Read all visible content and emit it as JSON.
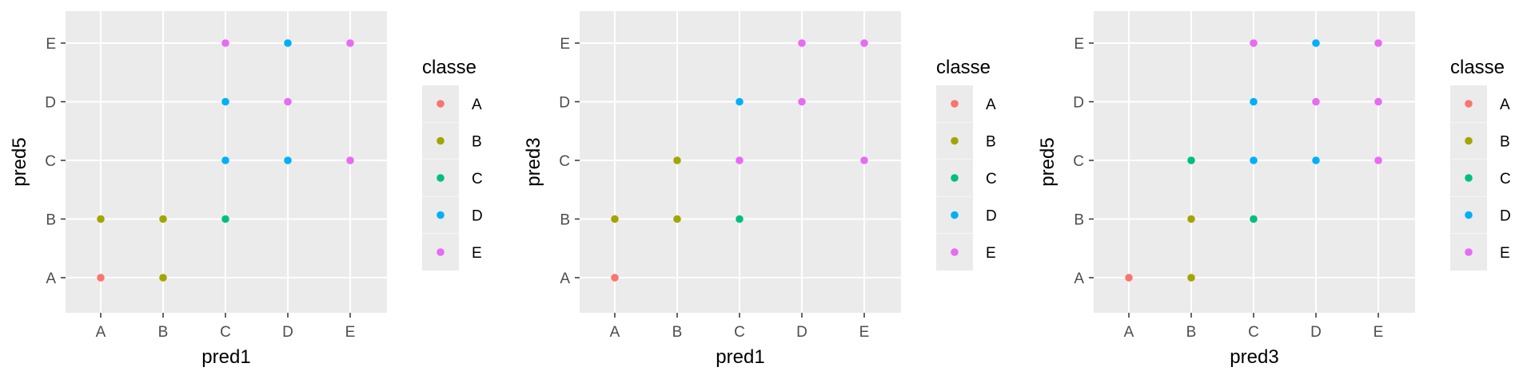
{
  "chart_data": [
    {
      "type": "scatter",
      "xlabel": "pred1",
      "ylabel": "pred5",
      "x_categories": [
        "A",
        "B",
        "C",
        "D",
        "E"
      ],
      "y_categories": [
        "A",
        "B",
        "C",
        "D",
        "E"
      ],
      "grid": true,
      "legend": {
        "title": "classe",
        "position": "right",
        "entries": [
          "A",
          "B",
          "C",
          "D",
          "E"
        ]
      },
      "points": [
        {
          "x": "A",
          "y": "A",
          "classe": "A"
        },
        {
          "x": "A",
          "y": "B",
          "classe": "B"
        },
        {
          "x": "B",
          "y": "A",
          "classe": "B"
        },
        {
          "x": "B",
          "y": "B",
          "classe": "B"
        },
        {
          "x": "C",
          "y": "B",
          "classe": "C"
        },
        {
          "x": "C",
          "y": "C",
          "classe": "D"
        },
        {
          "x": "C",
          "y": "D",
          "classe": "D"
        },
        {
          "x": "C",
          "y": "E",
          "classe": "E"
        },
        {
          "x": "D",
          "y": "C",
          "classe": "D"
        },
        {
          "x": "D",
          "y": "D",
          "classe": "E"
        },
        {
          "x": "D",
          "y": "E",
          "classe": "D"
        },
        {
          "x": "E",
          "y": "C",
          "classe": "E"
        },
        {
          "x": "E",
          "y": "E",
          "classe": "E"
        }
      ]
    },
    {
      "type": "scatter",
      "xlabel": "pred1",
      "ylabel": "pred3",
      "x_categories": [
        "A",
        "B",
        "C",
        "D",
        "E"
      ],
      "y_categories": [
        "A",
        "B",
        "C",
        "D",
        "E"
      ],
      "grid": true,
      "legend": {
        "title": "classe",
        "position": "right",
        "entries": [
          "A",
          "B",
          "C",
          "D",
          "E"
        ]
      },
      "points": [
        {
          "x": "A",
          "y": "A",
          "classe": "A"
        },
        {
          "x": "A",
          "y": "B",
          "classe": "B"
        },
        {
          "x": "B",
          "y": "B",
          "classe": "B"
        },
        {
          "x": "B",
          "y": "C",
          "classe": "B"
        },
        {
          "x": "C",
          "y": "B",
          "classe": "C"
        },
        {
          "x": "C",
          "y": "C",
          "classe": "E"
        },
        {
          "x": "C",
          "y": "D",
          "classe": "D"
        },
        {
          "x": "D",
          "y": "D",
          "classe": "E"
        },
        {
          "x": "D",
          "y": "E",
          "classe": "E"
        },
        {
          "x": "E",
          "y": "C",
          "classe": "E"
        },
        {
          "x": "E",
          "y": "E",
          "classe": "E"
        }
      ]
    },
    {
      "type": "scatter",
      "xlabel": "pred3",
      "ylabel": "pred5",
      "x_categories": [
        "A",
        "B",
        "C",
        "D",
        "E"
      ],
      "y_categories": [
        "A",
        "B",
        "C",
        "D",
        "E"
      ],
      "grid": true,
      "legend": {
        "title": "classe",
        "position": "right",
        "entries": [
          "A",
          "B",
          "C",
          "D",
          "E"
        ]
      },
      "points": [
        {
          "x": "A",
          "y": "A",
          "classe": "A"
        },
        {
          "x": "B",
          "y": "A",
          "classe": "B"
        },
        {
          "x": "B",
          "y": "B",
          "classe": "B"
        },
        {
          "x": "B",
          "y": "C",
          "classe": "C"
        },
        {
          "x": "C",
          "y": "B",
          "classe": "C"
        },
        {
          "x": "C",
          "y": "C",
          "classe": "D"
        },
        {
          "x": "C",
          "y": "D",
          "classe": "D"
        },
        {
          "x": "C",
          "y": "E",
          "classe": "E"
        },
        {
          "x": "D",
          "y": "C",
          "classe": "D"
        },
        {
          "x": "D",
          "y": "D",
          "classe": "E"
        },
        {
          "x": "D",
          "y": "E",
          "classe": "D"
        },
        {
          "x": "E",
          "y": "C",
          "classe": "E"
        },
        {
          "x": "E",
          "y": "D",
          "classe": "E"
        },
        {
          "x": "E",
          "y": "E",
          "classe": "E"
        }
      ]
    }
  ],
  "colors": {
    "A": "#F8766D",
    "B": "#A3A500",
    "C": "#00BF7D",
    "D": "#00B0F6",
    "E": "#E76BF3",
    "panel_background": "#EBEBEB",
    "grid": "#FFFFFF",
    "legend_key_background": "#EBEBEB"
  }
}
